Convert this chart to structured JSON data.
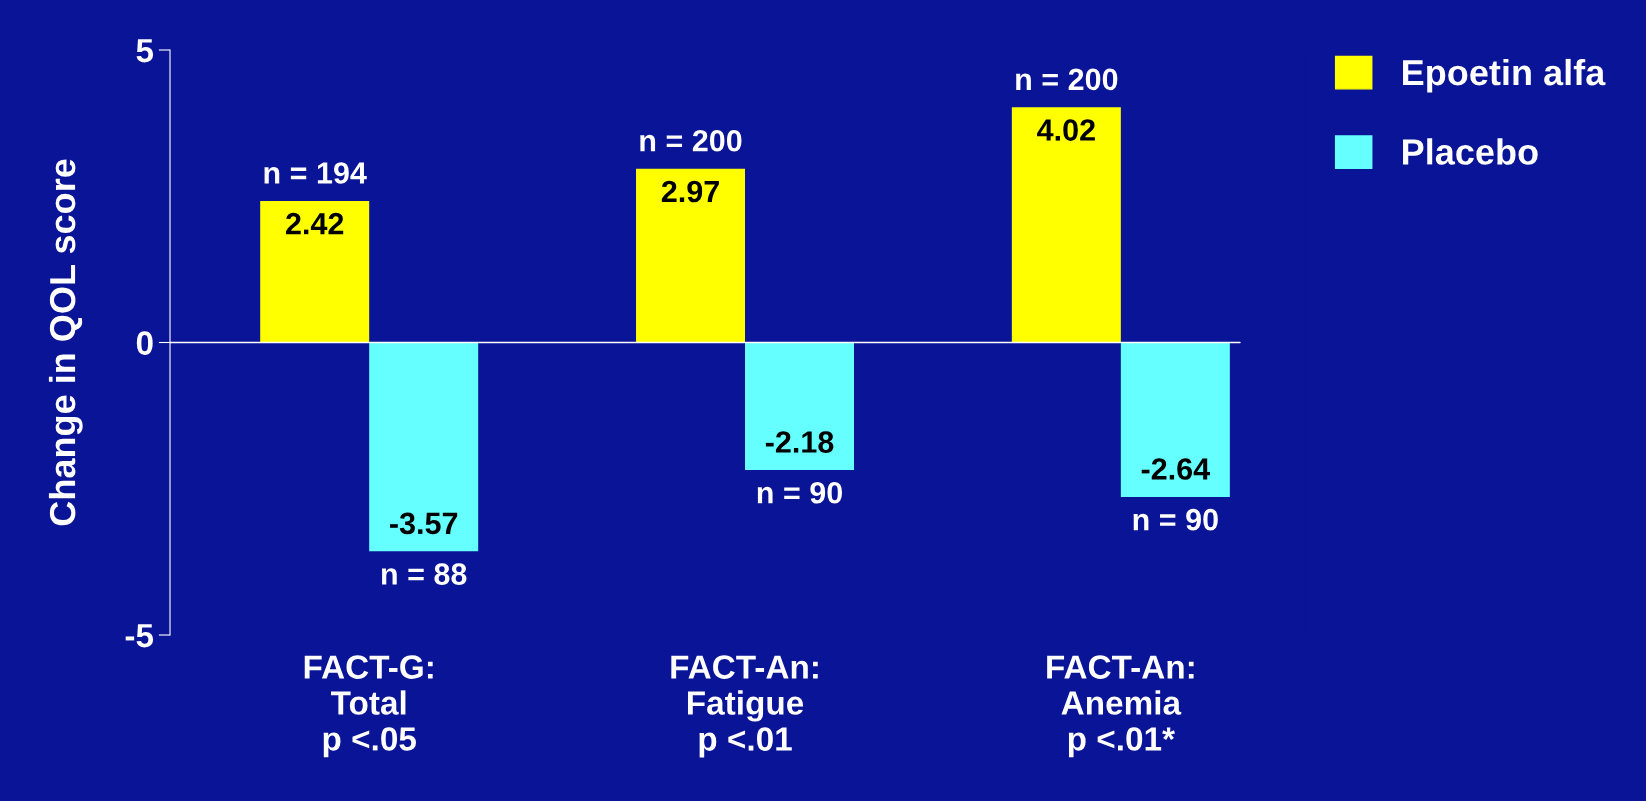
{
  "chart_data": {
    "type": "bar",
    "ylabel": "Change in QOL score",
    "categories": [
      "FACT-G:\nTotal\np <.05",
      "FACT-An:\nFatigue\np <.01",
      "FACT-An:\nAnemia\np <.01*"
    ],
    "series": [
      {
        "name": "Epoetin alfa",
        "color": "#ffff00",
        "values": [
          2.42,
          2.97,
          4.02
        ]
      },
      {
        "name": "Placebo",
        "color": "#66ffff",
        "values": [
          -3.57,
          -2.18,
          -2.64
        ]
      }
    ],
    "ref_lines": [
      {
        "axis": "y",
        "value": 0,
        "color": "#ffffff"
      }
    ],
    "ylim": [
      -5,
      5
    ],
    "yticks": [
      -5,
      0,
      5
    ],
    "data_labels": true,
    "grid": false,
    "legend": "top right",
    "annotations": [
      {
        "text": "n = 194",
        "x": "FACT-G:\nTotal\np <.05",
        "y": 2.42
      },
      {
        "text": "n = 200",
        "x": "FACT-An:\nFatigue\np <.01",
        "y": 2.97
      },
      {
        "text": "n = 200",
        "x": "FACT-An:\nAnemia\np <.01*",
        "y": 4.02
      },
      {
        "text": "n = 88",
        "x": "FACT-G:\nTotal\np <.05",
        "y": -3.57
      },
      {
        "text": "n = 90",
        "x": "FACT-An:\nFatigue\np <.01",
        "y": -2.18
      },
      {
        "text": "n = 90",
        "x": "FACT-An:\nAnemia\np <.01*",
        "y": -2.64
      }
    ]
  }
}
